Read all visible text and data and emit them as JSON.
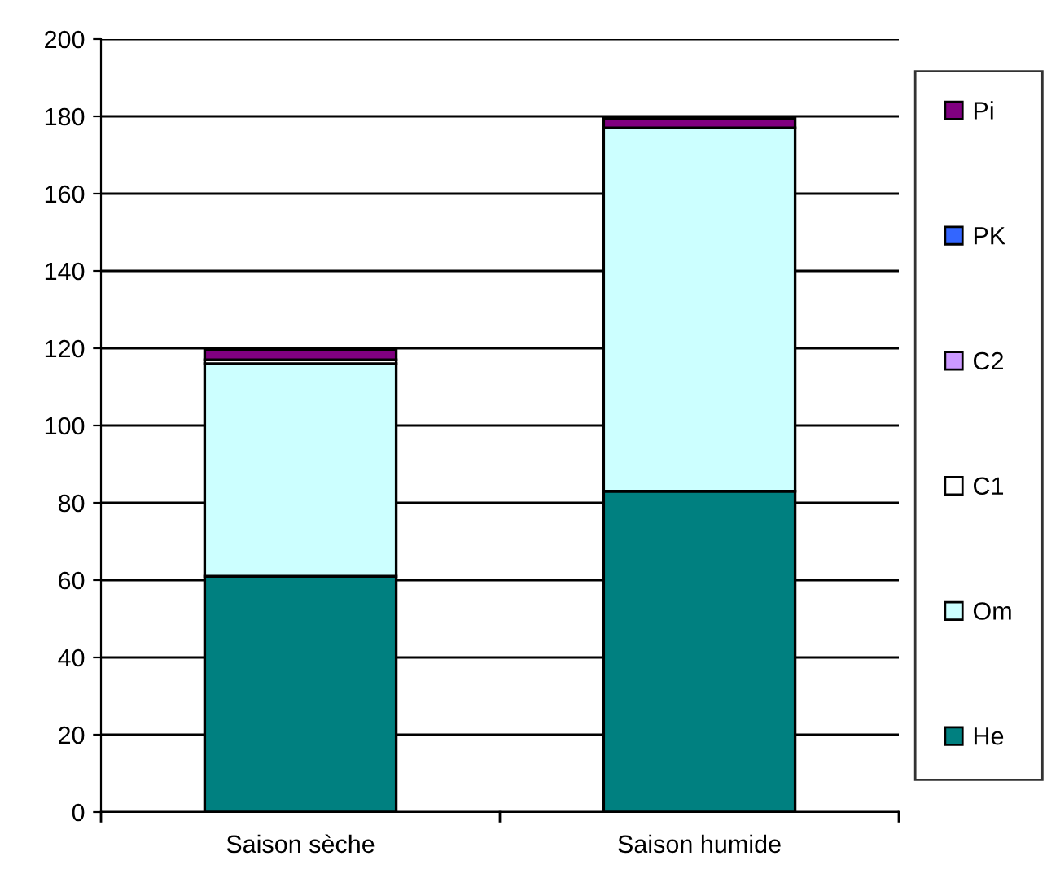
{
  "chart_data": {
    "type": "bar",
    "stacked": true,
    "categories": [
      "Saison sèche",
      "Saison humide"
    ],
    "series": [
      {
        "name": "He",
        "color": "#008080",
        "values": [
          61,
          83
        ]
      },
      {
        "name": "Om",
        "color": "#ccffff",
        "values": [
          55,
          94
        ]
      },
      {
        "name": "C1",
        "color": "#ffffff",
        "values": [
          1,
          0
        ]
      },
      {
        "name": "C2",
        "color": "#cc99ff",
        "values": [
          null,
          0
        ]
      },
      {
        "name": "PK",
        "color": "#3366ff",
        "values": [
          null,
          0
        ]
      },
      {
        "name": "Pi",
        "color": "#800080",
        "values": [
          2.5,
          2.5
        ]
      }
    ],
    "ylim": [
      0,
      200
    ],
    "yticks": [
      0,
      20,
      40,
      60,
      80,
      100,
      120,
      140,
      160,
      180,
      200
    ],
    "grid": "y",
    "legend": "right"
  }
}
